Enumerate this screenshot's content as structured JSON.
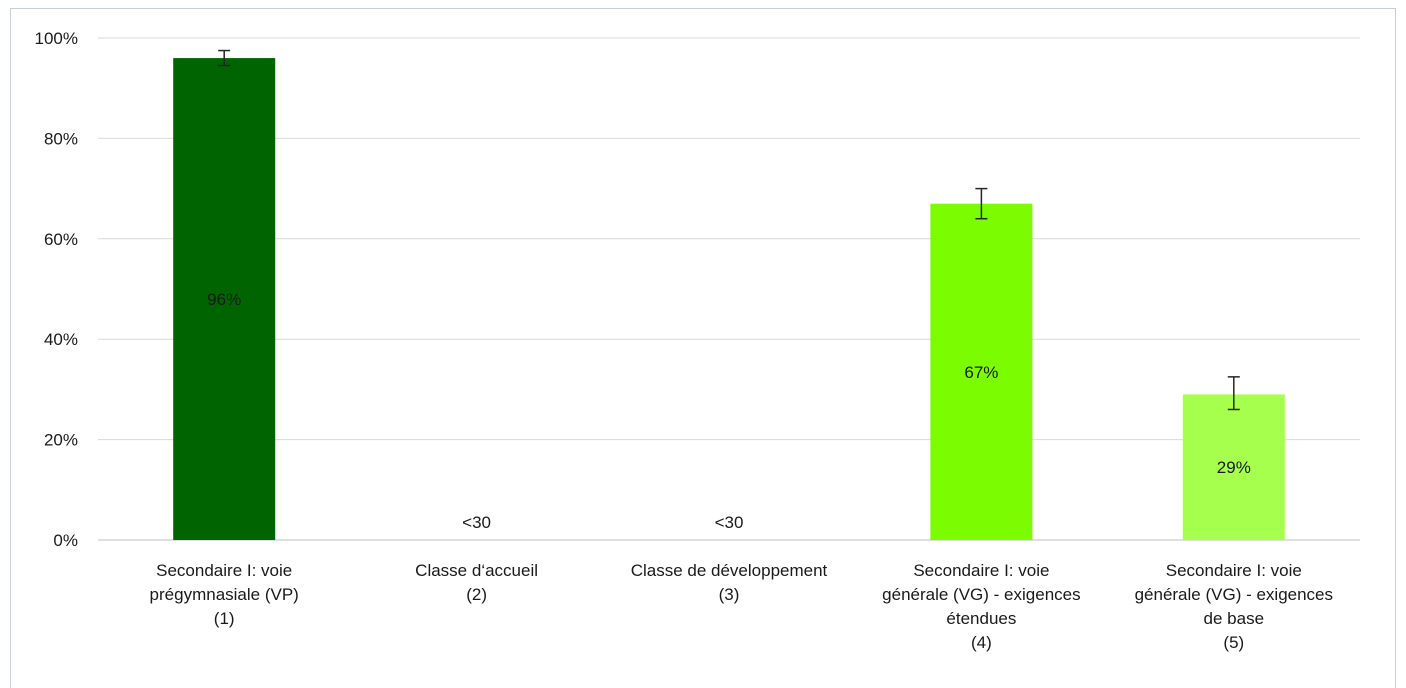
{
  "chart_data": {
    "type": "bar",
    "categories": [
      [
        "Secondaire I: voie",
        "prégymnasiale (VP)",
        "(1)"
      ],
      [
        "Classe d‘accueil",
        "(2)"
      ],
      [
        "Classe de développement",
        "(3)"
      ],
      [
        "Secondaire I: voie",
        "générale (VG) - exigences",
        "étendues",
        "(4)"
      ],
      [
        "Secondaire I: voie",
        "générale (VG) - exigences",
        "de base",
        "(5)"
      ]
    ],
    "values": [
      96,
      null,
      null,
      67,
      29
    ],
    "data_labels": [
      "96%",
      "<30",
      "<30",
      "67%",
      "29%"
    ],
    "error_bars": [
      [
        94.5,
        97.5
      ],
      null,
      null,
      [
        64,
        70
      ],
      [
        26,
        32.5
      ]
    ],
    "bar_colors": [
      "#006400",
      null,
      null,
      "#7cfc00",
      "#a6ff4d"
    ],
    "ylim": [
      0,
      100
    ],
    "yticks": [
      0,
      20,
      40,
      60,
      80,
      100
    ],
    "ytick_labels": [
      "0%",
      "20%",
      "40%",
      "60%",
      "80%",
      "100%"
    ],
    "grid": true,
    "title": "",
    "xlabel": "",
    "ylabel": ""
  }
}
